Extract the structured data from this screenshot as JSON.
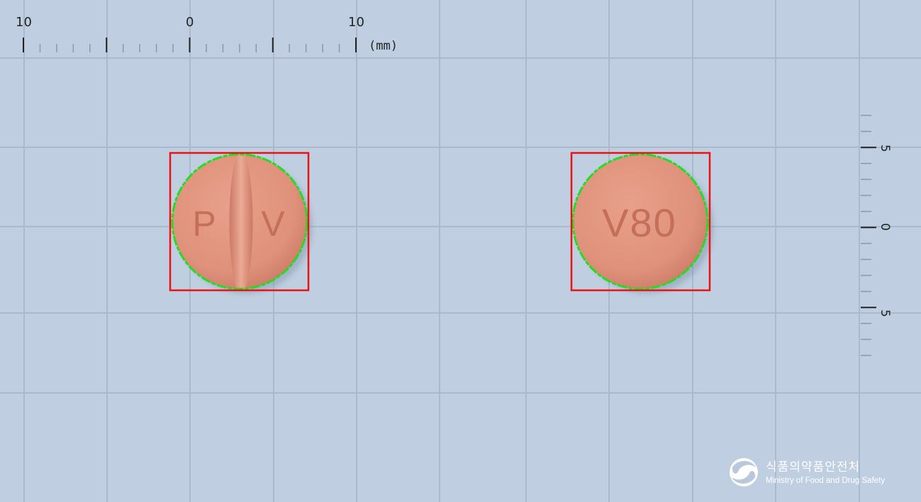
{
  "ruler_top": {
    "labels": [
      "10",
      "0",
      "10"
    ],
    "unit": "(mm)"
  },
  "ruler_right": {
    "labels": [
      "5",
      "0",
      "5"
    ]
  },
  "pills": [
    {
      "imprint_left": "P",
      "imprint_right": "V",
      "score_line": true
    },
    {
      "imprint": "V80",
      "score_line": false
    }
  ],
  "logo": {
    "name_ko": "식품의약품안전처",
    "name_en": "Ministry of Food and Drug Safety"
  },
  "colors": {
    "background": "#bfcfe1",
    "grid": "#a9bacd",
    "pill": "#e0937e",
    "outline": "#22dd22",
    "box": "#ee1111",
    "ruler": "#333333"
  }
}
